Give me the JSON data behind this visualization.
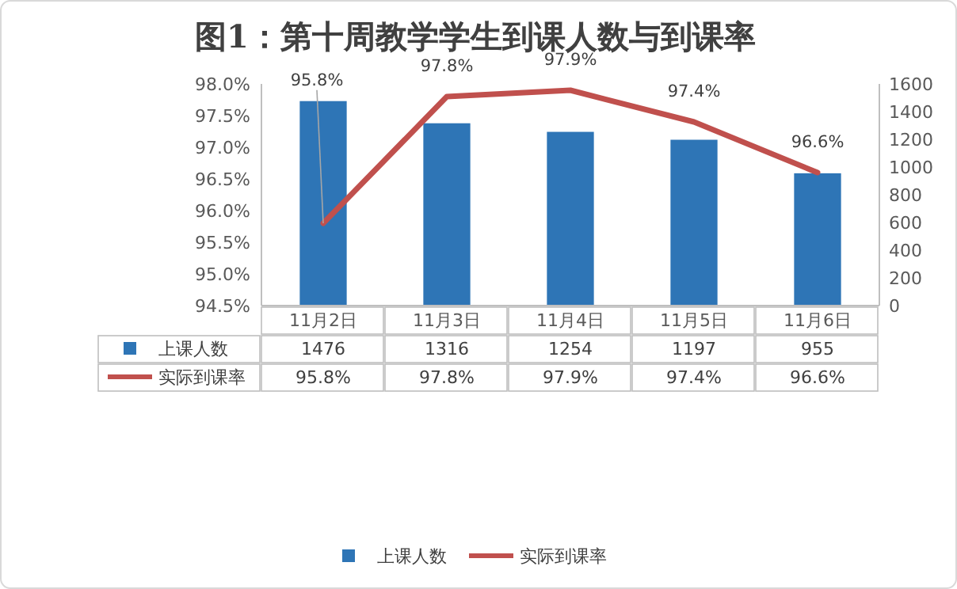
{
  "chart_data": {
    "type": "bar",
    "title": "图1：第十周教学学生到课人数与到课率",
    "categories": [
      "11月2日",
      "11月3日",
      "11月4日",
      "11月5日",
      "11月6日"
    ],
    "series": [
      {
        "name": "上课人数",
        "axis": "y2",
        "color": "#2e75b6",
        "values": [
          1476,
          1316,
          1254,
          1197,
          955
        ]
      },
      {
        "name": "实际到课率",
        "type": "line",
        "axis": "y",
        "color": "#c0504d",
        "values": [
          95.8,
          97.8,
          97.9,
          97.4,
          96.6
        ],
        "value_labels": [
          "95.8%",
          "97.8%",
          "97.9%",
          "97.4%",
          "96.6%"
        ]
      }
    ],
    "ylim": [
      94.5,
      98
    ],
    "yticks": [
      {
        "value": 94.5,
        "label": "94.5%"
      },
      {
        "value": 95,
        "label": "95.0%"
      },
      {
        "value": 95.5,
        "label": "95.5%"
      },
      {
        "value": 96,
        "label": "96.0%"
      },
      {
        "value": 96.5,
        "label": "96.5%"
      },
      {
        "value": 97,
        "label": "97.0%"
      },
      {
        "value": 97.5,
        "label": "97.5%"
      },
      {
        "value": 98,
        "label": "98.0%"
      }
    ],
    "y2lim": [
      0,
      1600
    ],
    "y2ticks": [
      0,
      200,
      400,
      600,
      800,
      1000,
      1200,
      1400,
      1600
    ],
    "data_labels": true,
    "legend": "bottom",
    "grid": false,
    "marker": "none",
    "line_style": "solid"
  }
}
